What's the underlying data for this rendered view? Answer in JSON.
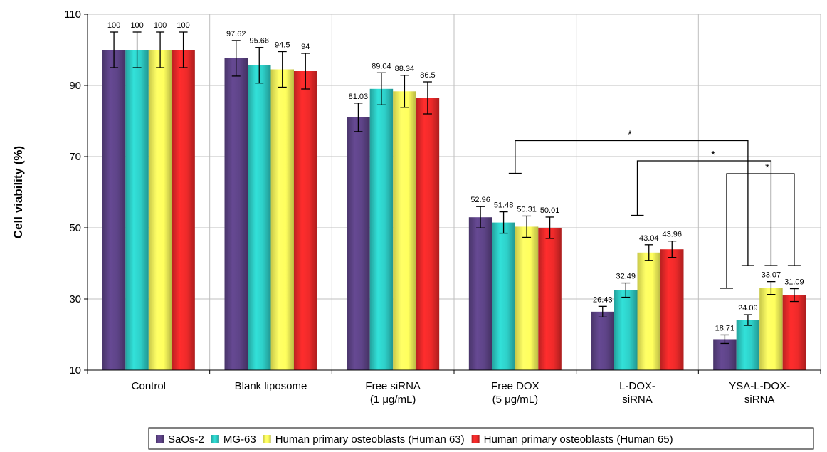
{
  "chart_data": {
    "type": "bar",
    "ylabel": "Cell viability (%)",
    "xlabel": "",
    "ylim": [
      10,
      110
    ],
    "yticks": [
      10,
      30,
      50,
      70,
      90,
      110
    ],
    "grid": true,
    "legend_position": "bottom",
    "categories": [
      [
        "Control"
      ],
      [
        "Blank liposome"
      ],
      [
        "Free siRNA",
        "(1 μg/mL)"
      ],
      [
        "Free DOX",
        "(5 μg/mL)"
      ],
      [
        "L-DOX-",
        "siRNA"
      ],
      [
        "YSA-L-DOX-",
        "siRNA"
      ]
    ],
    "series": [
      {
        "name": "SaOs-2",
        "color": "#5e4488",
        "values": [
          100,
          97.62,
          81.03,
          52.96,
          26.43,
          18.71
        ],
        "labels": [
          "100",
          "97.62",
          "81.03",
          "52.96",
          "26.43",
          "18.71"
        ]
      },
      {
        "name": "MG-63",
        "color": "#2ed0c9",
        "values": [
          100,
          95.66,
          89.04,
          51.48,
          32.49,
          24.09
        ],
        "labels": [
          "100",
          "95.66",
          "89.04",
          "51.48",
          "32.49",
          "24.09"
        ]
      },
      {
        "name": "Human primary osteoblasts (Human 63)",
        "color": "#ffff5e",
        "values": [
          100,
          94.5,
          88.34,
          50.31,
          43.04,
          33.07
        ],
        "labels": [
          "100",
          "94.5",
          "88.34",
          "50.31",
          "43.04",
          "33.07"
        ]
      },
      {
        "name": "Human primary osteoblasts (Human 65)",
        "color": "#ef2a2a",
        "values": [
          100,
          94,
          86.5,
          50.01,
          43.96,
          31.09
        ],
        "labels": [
          "100",
          "94",
          "86.5",
          "50.01",
          "43.96",
          "31.09"
        ]
      }
    ],
    "error_bars": [
      [
        5,
        5,
        4,
        3,
        1.5,
        1.2
      ],
      [
        5,
        5,
        4.5,
        3,
        2,
        1.5
      ],
      [
        5,
        5,
        4.5,
        3,
        2.2,
        1.8
      ],
      [
        5,
        5,
        4.5,
        3,
        2.3,
        1.8
      ]
    ],
    "significance": [
      {
        "label": "*",
        "from_category": 3,
        "to_category": 5,
        "level": 74.5
      },
      {
        "label": "*",
        "from_category": 4,
        "to_category": 5,
        "level": 68.8
      },
      {
        "label": "*",
        "from_category": 5,
        "to_category": 5,
        "level": 65.2
      }
    ]
  }
}
